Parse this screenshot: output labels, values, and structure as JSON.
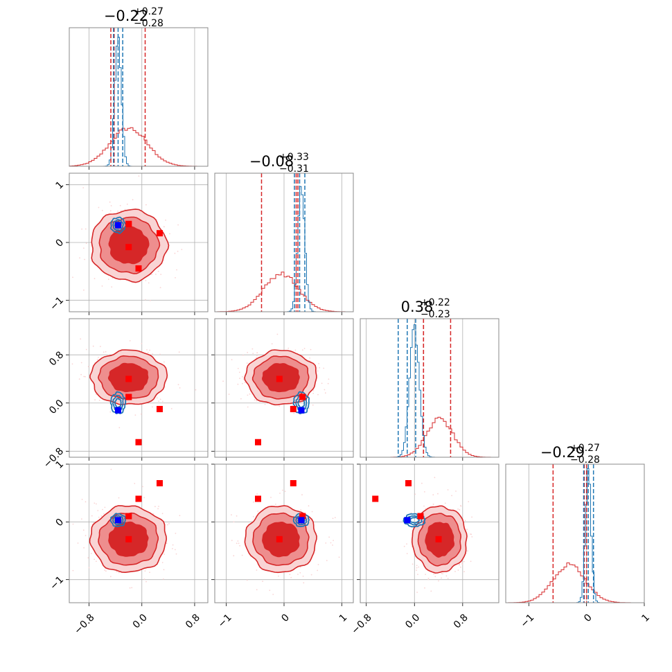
{
  "colors": {
    "red": "#d62728",
    "red_mid": "#ee8e8e",
    "red_light": "#f9d4d4",
    "blue": "#1f77b4",
    "marker_blue": "#0000ff",
    "marker_red": "#ff0000",
    "grid": "#b0b0b0"
  },
  "chart_data": {
    "type": "corner",
    "grid": true,
    "params": 4,
    "titles": [
      {
        "median": "−0.22",
        "plus": "+0.27",
        "minus": "−0.28"
      },
      {
        "median": "−0.08",
        "plus": "+0.33",
        "minus": "−0.31"
      },
      {
        "median": "0.38",
        "plus": "+0.22",
        "minus": "−0.23"
      },
      {
        "median": "−0.29",
        "plus": "+0.27",
        "minus": "−0.28"
      }
    ],
    "ranges": [
      [
        -1.1,
        1.0
      ],
      [
        -1.2,
        1.2
      ],
      [
        -0.9,
        1.4
      ],
      [
        -1.4,
        1.0
      ]
    ],
    "ticks": [
      {
        "values": [
          -0.8,
          0.0,
          0.8
        ],
        "labels": [
          "−0.8",
          "0.0",
          "0.8"
        ]
      },
      {
        "values": [
          -1,
          0,
          1
        ],
        "labels": [
          "−1",
          "0",
          "1"
        ]
      },
      {
        "values": [
          -0.8,
          0.0,
          0.8
        ],
        "labels": [
          "−0.8",
          "0.0",
          "0.8"
        ]
      },
      {
        "values": [
          -1,
          0,
          1
        ],
        "labels": [
          "−1",
          "0",
          "1"
        ]
      }
    ],
    "red_posterior": {
      "center": [
        -0.2,
        -0.05,
        0.42,
        -0.3
      ],
      "std": [
        0.28,
        0.3,
        0.22,
        0.28
      ],
      "quantiles": [
        [
          -0.47,
          0.05
        ],
        [
          -0.39,
          0.21
        ],
        [
          0.15,
          0.6
        ],
        [
          -0.58,
          0.0
        ]
      ],
      "median_line": [
        -0.42,
        0.24,
        0.15,
        -0.04
      ]
    },
    "blue_posterior": {
      "center": [
        -0.36,
        0.3,
        0.0,
        0.03
      ],
      "std": [
        0.05,
        0.06,
        0.08,
        0.05
      ],
      "quantiles": [
        [
          -0.43,
          -0.29
        ],
        [
          0.18,
          0.36
        ],
        [
          -0.27,
          0.02
        ],
        [
          -0.05,
          0.12
        ]
      ],
      "median_line": [
        -0.36,
        0.27,
        -0.12,
        0.03
      ]
    },
    "red_markers": [
      [
        -0.2,
        0.32,
        0.1,
        0.1
      ],
      [
        -0.2,
        -0.08,
        0.4,
        -0.3
      ],
      [
        -0.05,
        -0.45,
        -0.65,
        0.4
      ],
      [
        0.27,
        0.16,
        -0.1,
        0.67
      ],
      [
        -0.2,
        0.32,
        0.1,
        0.1
      ]
    ],
    "blue_marker": [
      -0.36,
      0.3,
      -0.12,
      0.03
    ]
  }
}
